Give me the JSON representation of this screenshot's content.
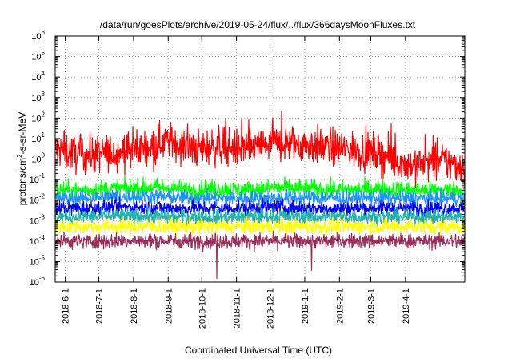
{
  "chart_data": {
    "type": "line",
    "title": "/data/run/goesPlots/archive/2019-05-24/flux/../flux/366daysMoonFluxes.txt",
    "xlabel": "Coordinated Universal Time (UTC)",
    "ylabel": "protons/cm²-s-sr-MeV",
    "yscale": "log",
    "ylim": [
      1e-06,
      1000000.0
    ],
    "xlim": [
      "2018-05-23",
      "2019-05-24"
    ],
    "grid": true,
    "legend": "none",
    "x_ticks": [
      "2018-6-1",
      "2018-7-1",
      "2018-8-1",
      "2018-9-1",
      "2018-10-1",
      "2018-11-1",
      "2018-12-1",
      "2019-1-1",
      "2019-2-1",
      "2019-3-1",
      "2019-4-1"
    ],
    "y_ticks": [
      {
        "base": "10",
        "exp": "-6",
        "value": 1e-06
      },
      {
        "base": "10",
        "exp": "-5",
        "value": 1e-05
      },
      {
        "base": "10",
        "exp": "-4",
        "value": 0.0001
      },
      {
        "base": "10",
        "exp": "-3",
        "value": 0.001
      },
      {
        "base": "10",
        "exp": "-2",
        "value": 0.01
      },
      {
        "base": "10",
        "exp": "-1",
        "value": 0.1
      },
      {
        "base": "10",
        "exp": "0",
        "value": 1
      },
      {
        "base": "10",
        "exp": "1",
        "value": 10
      },
      {
        "base": "10",
        "exp": "2",
        "value": 100
      },
      {
        "base": "10",
        "exp": "3",
        "value": 1000
      },
      {
        "base": "10",
        "exp": "4",
        "value": 10000
      },
      {
        "base": "10",
        "exp": "5",
        "value": 100000
      },
      {
        "base": "10",
        "exp": "6",
        "value": 1000000
      }
    ],
    "x": [
      "2018-05-23",
      "2018-06-15",
      "2018-07-15",
      "2018-08-15",
      "2018-09-01",
      "2018-09-20",
      "2018-10-15",
      "2018-11-10",
      "2018-12-05",
      "2019-01-05",
      "2019-02-05",
      "2019-03-05",
      "2019-04-05",
      "2019-05-05",
      "2019-05-24"
    ],
    "series": [
      {
        "color": "#ff0000",
        "values": [
          3,
          1.5,
          2,
          4,
          8,
          3,
          4,
          3,
          6,
          5,
          3,
          2,
          0.5,
          0.8,
          0.4
        ]
      },
      {
        "color": "#00ff00",
        "values": [
          0.03,
          0.03,
          0.035,
          0.04,
          0.04,
          0.03,
          0.035,
          0.03,
          0.04,
          0.035,
          0.03,
          0.035,
          0.03,
          0.03,
          0.03
        ]
      },
      {
        "color": "#1e90ff",
        "values": [
          0.012,
          0.012,
          0.015,
          0.015,
          0.014,
          0.013,
          0.012,
          0.012,
          0.013,
          0.013,
          0.012,
          0.013,
          0.012,
          0.012,
          0.012
        ]
      },
      {
        "color": "#0000ff",
        "values": [
          0.004,
          0.004,
          0.0045,
          0.0045,
          0.004,
          0.004,
          0.004,
          0.0042,
          0.0045,
          0.004,
          0.004,
          0.0042,
          0.004,
          0.004,
          0.004
        ]
      },
      {
        "color": "#20b2aa",
        "values": [
          0.0015,
          0.0015,
          0.0016,
          0.0016,
          0.0015,
          0.0015,
          0.0015,
          0.0015,
          0.0016,
          0.0015,
          0.0015,
          0.0015,
          0.0015,
          0.0015,
          0.0015
        ]
      },
      {
        "color": "#ffff00",
        "values": [
          0.0005,
          0.0005,
          0.0005,
          0.0005,
          0.0005,
          0.0005,
          0.0005,
          0.0005,
          0.0005,
          0.0005,
          0.0005,
          0.0005,
          0.0005,
          0.0005,
          0.0005
        ]
      },
      {
        "color": "#9b2d5a",
        "values": [
          0.0001,
          0.0001,
          0.0001,
          0.0001,
          0.0001,
          0.0001,
          0.0001,
          0.0001,
          0.0001,
          0.0001,
          0.0001,
          0.0001,
          0.0001,
          0.0001,
          0.0001
        ]
      }
    ]
  }
}
